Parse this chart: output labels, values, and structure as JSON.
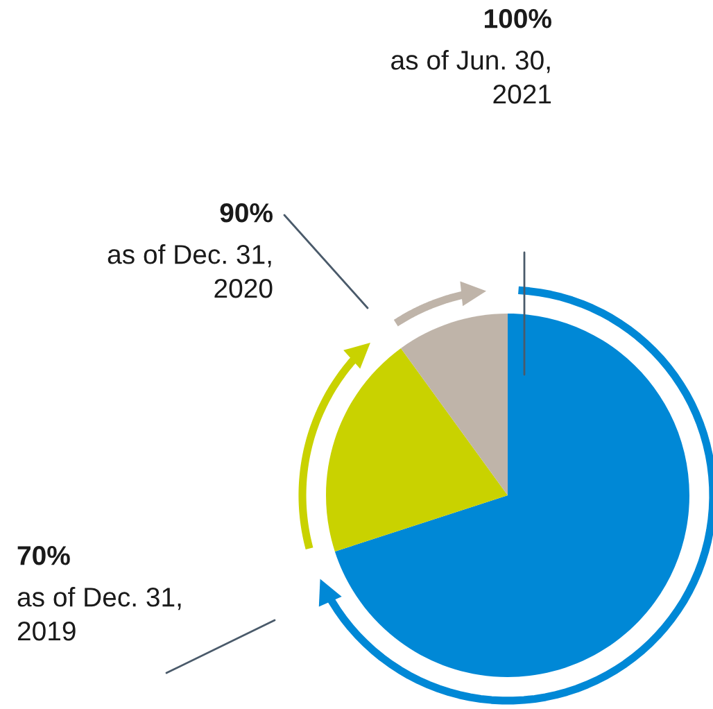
{
  "chart_data": {
    "type": "pie",
    "categories": [
      null,
      null,
      null
    ],
    "values": [
      70,
      20,
      10
    ],
    "colors": [
      "#0088d6",
      "#c9d200",
      "#bfb4a9"
    ],
    "annotations": [
      "70%\nas of Dec. 31,\n2019",
      "90%\nas of Dec. 31,\n2020",
      "100%\nas of Jun. 30,\n2021"
    ]
  }
}
